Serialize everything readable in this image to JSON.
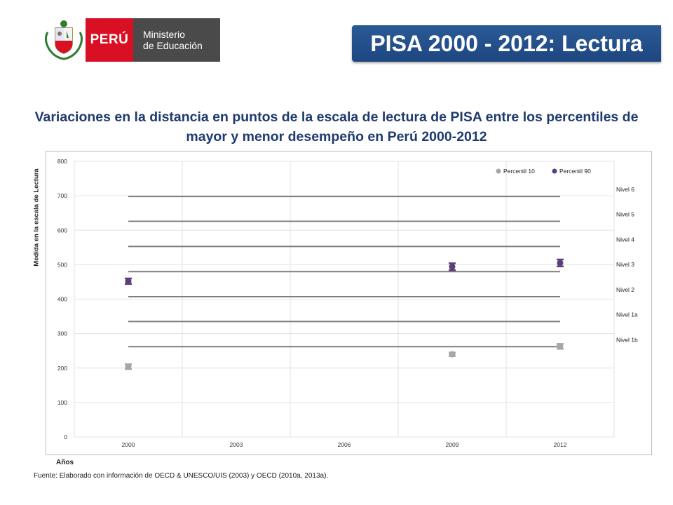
{
  "header": {
    "peru_label": "PERÚ",
    "ministry_line1": "Ministerio",
    "ministry_line2": "de Educación",
    "banner": "PISA 2000 - 2012: Lectura"
  },
  "colors": {
    "banner": "#1f4a86",
    "peru_red": "#d91023",
    "title": "#1f3b6e",
    "p10": "#a6a6a6",
    "p90": "#5b3f78",
    "level_line": "#7f7f7f"
  },
  "chart_data": {
    "type": "scatter",
    "title": "Variaciones en la distancia en puntos de la escala de lectura de PISA entre los percentiles de mayor y menor desempeño en Perú 2000-2012",
    "xlabel": "Años",
    "ylabel": "Medida en la escala de Lectura",
    "categories": [
      "2000",
      "2003",
      "2006",
      "2009",
      "2012"
    ],
    "ylim": [
      0,
      800
    ],
    "yticks": [
      0,
      100,
      200,
      300,
      400,
      500,
      600,
      700,
      800
    ],
    "grid": true,
    "legend_position": "top-right",
    "series": [
      {
        "name": "Percentil 10",
        "color": "#a6a6a6",
        "points": [
          {
            "x": "2000",
            "y": 204,
            "low": 197,
            "high": 211
          },
          {
            "x": "2009",
            "y": 240,
            "low": 235,
            "high": 245
          },
          {
            "x": "2012",
            "y": 263,
            "low": 256,
            "high": 270
          }
        ]
      },
      {
        "name": "Percentil 90",
        "color": "#5b3f78",
        "points": [
          {
            "x": "2000",
            "y": 452,
            "low": 444,
            "high": 460
          },
          {
            "x": "2009",
            "y": 494,
            "low": 484,
            "high": 504
          },
          {
            "x": "2012",
            "y": 505,
            "low": 495,
            "high": 515
          }
        ]
      }
    ],
    "levels": [
      {
        "name": "Nivel 6",
        "y": 698
      },
      {
        "name": "Nivel 5",
        "y": 626
      },
      {
        "name": "Nivel 4",
        "y": 553
      },
      {
        "name": "Nivel 3",
        "y": 480
      },
      {
        "name": "Nivel 2",
        "y": 407
      },
      {
        "name": "Nivel 1a",
        "y": 335
      },
      {
        "name": "Nivel 1b",
        "y": 262
      }
    ]
  },
  "footer": {
    "source": "Fuente: Elaborado con información de OECD & UNESCO/UIS  (2003) y OECD (2010a, 2013a)."
  }
}
